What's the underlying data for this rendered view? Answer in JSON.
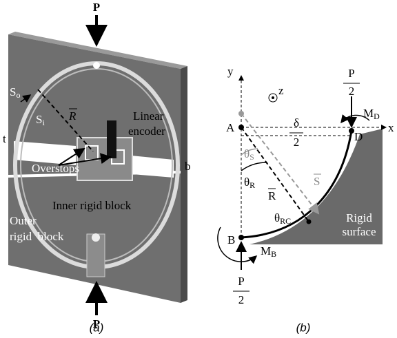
{
  "panel_a": {
    "caption": "(a)",
    "load_top": "P",
    "load_bottom": "P",
    "s_outer": {
      "base": "S",
      "sub": "o"
    },
    "s_inner": {
      "base": "S",
      "sub": "i"
    },
    "radius": "R",
    "encoder": [
      "Linear",
      "encoder"
    ],
    "thickness": "t",
    "width": "b",
    "overstops": "Overstops",
    "inner_block": "Inner rigid block",
    "outer_block": [
      "Outer",
      "rigid  block"
    ]
  },
  "panel_b": {
    "caption": "(b)",
    "y_axis": "y",
    "z_axis": "z",
    "x_axis": "x",
    "point_a": "A",
    "point_b": "B",
    "point_d": "D",
    "load_top": {
      "num": "P",
      "den": "2"
    },
    "moment_d": {
      "base": "M",
      "sub": "D"
    },
    "delta": {
      "num": "δ",
      "den": "2"
    },
    "theta_s": {
      "base": "θ",
      "sub": "S"
    },
    "arc_s": "S",
    "theta_r": {
      "base": "θ",
      "sub": "R"
    },
    "radius_r": "R",
    "theta_rc": {
      "base": "θ",
      "sub": "RC"
    },
    "moment_b": {
      "base": "M",
      "sub": "B"
    },
    "load_bottom": {
      "num": "P",
      "den": "2"
    },
    "surface": [
      "Rigid",
      "surface"
    ]
  }
}
